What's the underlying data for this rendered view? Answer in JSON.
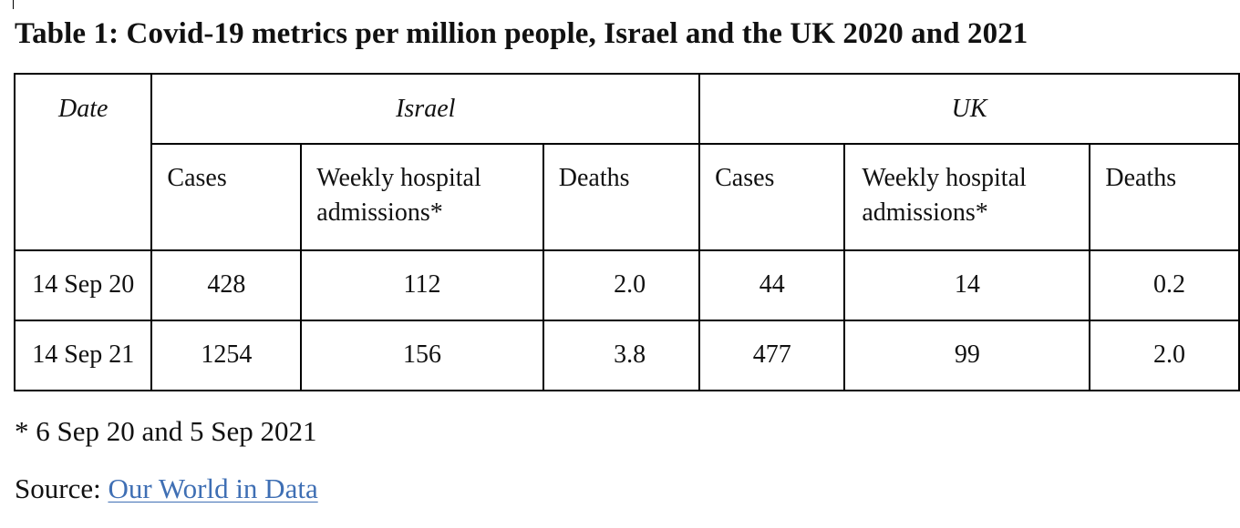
{
  "title": "Table 1: Covid-19 metrics per million people, Israel and the UK 2020 and 2021",
  "table": {
    "date_header": "Date",
    "groups": [
      "Israel",
      "UK"
    ],
    "subheaders": [
      "Cases",
      "Weekly hospital admissions*",
      "Deaths",
      "Cases",
      "Weekly hospital admissions*",
      "Deaths"
    ],
    "rows": [
      {
        "date": "14 Sep 20",
        "values": [
          "428",
          "112",
          "2.0",
          "44",
          "14",
          "0.2"
        ]
      },
      {
        "date": "14 Sep 21",
        "values": [
          "1254",
          "156",
          "3.8",
          "477",
          "99",
          "2.0"
        ]
      }
    ]
  },
  "footnote": "* 6 Sep 20 and 5 Sep 2021",
  "source": {
    "label": "Source: ",
    "link_text": "Our World in Data"
  },
  "colors": {
    "link": "#3f6fb4",
    "border": "#000000"
  }
}
